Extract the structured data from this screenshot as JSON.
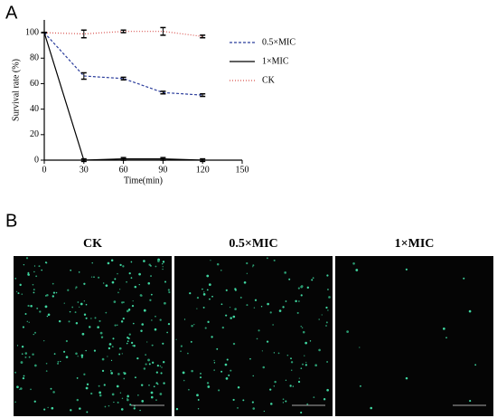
{
  "panels": [
    "A",
    "B"
  ],
  "chart_data": {
    "type": "line",
    "xlabel": "Time(min)",
    "ylabel": "Survival rate (%)",
    "x": [
      0,
      30,
      60,
      90,
      120
    ],
    "series": [
      {
        "name": "0.5×MIC",
        "color": "#2b3d9c",
        "dash": "3,2",
        "values": [
          100,
          66,
          64,
          53,
          51
        ],
        "errors": [
          0,
          2.5,
          1,
          1,
          1
        ]
      },
      {
        "name": "1×MIC",
        "color": "#000000",
        "dash": "none",
        "values": [
          100,
          0,
          1,
          1,
          0
        ],
        "errors": [
          0,
          1,
          1,
          1,
          1
        ]
      },
      {
        "name": "CK",
        "color": "#d9534f",
        "dash": "1,2",
        "values": [
          100,
          99,
          101,
          101,
          97
        ],
        "errors": [
          0,
          3,
          1,
          3,
          1
        ]
      }
    ],
    "xlim": [
      0,
      150
    ],
    "xticks": [
      0,
      30,
      60,
      90,
      120,
      150
    ],
    "ylim": [
      0,
      110
    ],
    "yticks": [
      0,
      20,
      40,
      60,
      80,
      100
    ],
    "legend": "upper right"
  },
  "images": [
    {
      "title": "CK"
    },
    {
      "title": "0.5×MIC"
    },
    {
      "title": "1×MIC"
    }
  ]
}
